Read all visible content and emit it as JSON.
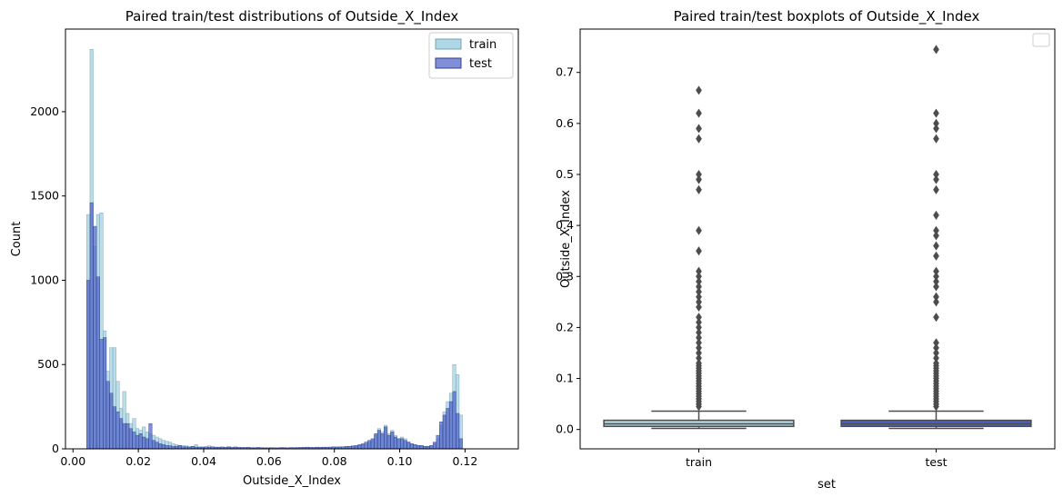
{
  "chart_data": [
    {
      "type": "histogram",
      "title": "Paired train/test distributions of Outside_X_Index",
      "xlabel": "Outside_X_Index",
      "ylabel": "Count",
      "xlim": [
        -0.0023,
        0.1363
      ],
      "ylim": [
        0,
        2490
      ],
      "xticks": [
        0.0,
        0.02,
        0.04,
        0.06,
        0.08,
        0.1,
        0.12
      ],
      "xtick_labels": [
        "0.00",
        "0.02",
        "0.04",
        "0.06",
        "0.08",
        "0.10",
        "0.12"
      ],
      "yticks": [
        0,
        500,
        1000,
        1500,
        2000
      ],
      "ytick_labels": [
        "0",
        "500",
        "1000",
        "1500",
        "2000"
      ],
      "legend": "top-right",
      "colors": {
        "train": "#add8e6",
        "test": "#4c5fc8"
      },
      "bin_start": 0.0042,
      "bin_width": 0.001,
      "series": [
        {
          "name": "train",
          "counts": [
            1390,
            2370,
            1200,
            1390,
            1400,
            700,
            460,
            600,
            600,
            400,
            240,
            340,
            210,
            150,
            180,
            120,
            110,
            130,
            100,
            90,
            80,
            70,
            60,
            50,
            45,
            40,
            30,
            25,
            20,
            20,
            18,
            15,
            15,
            25,
            12,
            12,
            10,
            18,
            12,
            10,
            10,
            12,
            10,
            15,
            10,
            12,
            10,
            8,
            8,
            10,
            8,
            8,
            8,
            8,
            6,
            6,
            8,
            6,
            6,
            6,
            8,
            6,
            6,
            8,
            6,
            8,
            10,
            8,
            10,
            8,
            8,
            10,
            8,
            10,
            10,
            10,
            12,
            10,
            12,
            10,
            15,
            15,
            15,
            20,
            25,
            30,
            40,
            50,
            80,
            120,
            100,
            140,
            90,
            110,
            80,
            60,
            70,
            60,
            40,
            30,
            25,
            20,
            20,
            15,
            15,
            20,
            30,
            60,
            140,
            220,
            280,
            330,
            500,
            440,
            200
          ]
        },
        {
          "name": "test",
          "counts": [
            1000,
            1460,
            1320,
            1020,
            650,
            660,
            400,
            330,
            250,
            220,
            180,
            150,
            150,
            120,
            100,
            80,
            90,
            70,
            60,
            150,
            50,
            40,
            30,
            25,
            20,
            18,
            15,
            15,
            20,
            12,
            12,
            10,
            15,
            10,
            10,
            10,
            12,
            10,
            12,
            10,
            10,
            10,
            8,
            10,
            8,
            10,
            8,
            8,
            8,
            8,
            6,
            6,
            8,
            6,
            6,
            6,
            6,
            6,
            6,
            8,
            6,
            6,
            8,
            6,
            8,
            8,
            8,
            10,
            8,
            8,
            10,
            8,
            10,
            10,
            10,
            12,
            10,
            12,
            12,
            15,
            15,
            18,
            20,
            25,
            30,
            40,
            50,
            60,
            90,
            110,
            90,
            130,
            80,
            100,
            70,
            60,
            60,
            50,
            40,
            30,
            25,
            20,
            20,
            15,
            15,
            20,
            40,
            80,
            160,
            200,
            240,
            280,
            340,
            210,
            60
          ]
        }
      ]
    },
    {
      "type": "boxplot",
      "title": "Paired train/test boxplots of Outside_X_Index",
      "xlabel": "set",
      "ylabel": "Outside_X_Index",
      "categories": [
        "train",
        "test"
      ],
      "ylim": [
        -0.038,
        0.785
      ],
      "yticks": [
        0.0,
        0.1,
        0.2,
        0.3,
        0.4,
        0.5,
        0.6,
        0.7
      ],
      "ytick_labels": [
        "0.0",
        "0.1",
        "0.2",
        "0.3",
        "0.4",
        "0.5",
        "0.6",
        "0.7"
      ],
      "colors": {
        "train": "#add8e6",
        "test": "#4c5fc8",
        "line": "#4d4d4d"
      },
      "boxes": [
        {
          "name": "train",
          "whisker_low": 0.002,
          "q1": 0.006,
          "median": 0.011,
          "q3": 0.018,
          "whisker_high": 0.036,
          "outliers": [
            0.045,
            0.05,
            0.055,
            0.06,
            0.065,
            0.07,
            0.075,
            0.08,
            0.085,
            0.09,
            0.095,
            0.1,
            0.105,
            0.11,
            0.115,
            0.12,
            0.125,
            0.13,
            0.14,
            0.15,
            0.16,
            0.17,
            0.18,
            0.19,
            0.2,
            0.21,
            0.22,
            0.24,
            0.25,
            0.26,
            0.27,
            0.28,
            0.29,
            0.3,
            0.31,
            0.35,
            0.39,
            0.47,
            0.49,
            0.5,
            0.57,
            0.59,
            0.62,
            0.665
          ]
        },
        {
          "name": "test",
          "whisker_low": 0.002,
          "q1": 0.006,
          "median": 0.011,
          "q3": 0.018,
          "whisker_high": 0.036,
          "outliers": [
            0.045,
            0.05,
            0.055,
            0.06,
            0.065,
            0.07,
            0.075,
            0.08,
            0.085,
            0.09,
            0.095,
            0.1,
            0.105,
            0.11,
            0.115,
            0.12,
            0.125,
            0.13,
            0.14,
            0.15,
            0.16,
            0.17,
            0.22,
            0.25,
            0.26,
            0.28,
            0.29,
            0.3,
            0.31,
            0.34,
            0.36,
            0.38,
            0.39,
            0.42,
            0.47,
            0.49,
            0.5,
            0.57,
            0.59,
            0.6,
            0.62,
            0.745
          ]
        }
      ]
    }
  ]
}
